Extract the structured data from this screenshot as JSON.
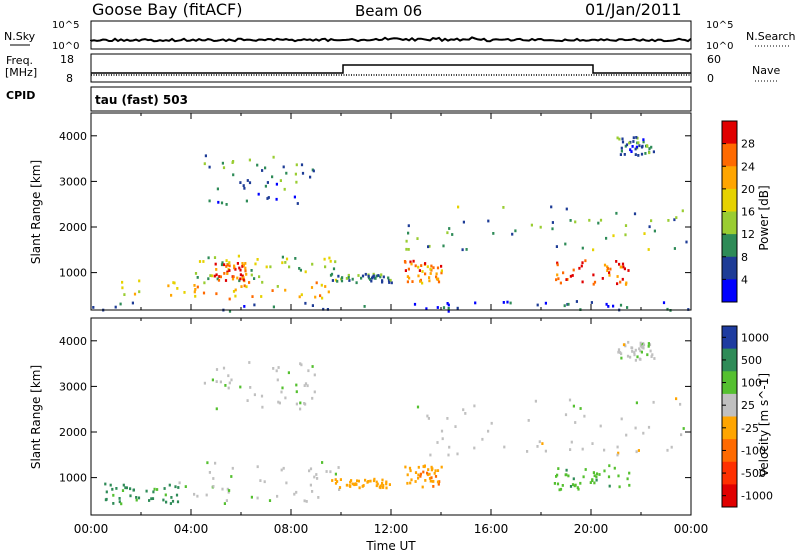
{
  "header": {
    "station": "Goose Bay (fitACF)",
    "beam": "Beam 06",
    "date": "01/Jan/2011"
  },
  "strip_labels": {
    "nsky": "N.Sky",
    "nsearch": "N.Search",
    "freq_line1": "Freq.",
    "freq_line2": "[MHz]",
    "cpid": "CPID",
    "nave": "Nave",
    "cpid_value": "tau (fast) 503",
    "nsky_ticks": [
      "10^5",
      "10^0"
    ],
    "nsearch_ticks": [
      "10^5",
      "10^0"
    ],
    "freq_ticks": [
      "18",
      "8"
    ],
    "nave_ticks": [
      "60",
      "0"
    ]
  },
  "chart_data": [
    {
      "type": "heatmap",
      "name": "power-panel",
      "ylabel": "Slant Range [km]",
      "colorbar_label": "Power [dB]",
      "colorbar_ticks": [
        "28",
        "24",
        "20",
        "16",
        "12",
        "8",
        "4"
      ],
      "colorbar_colors": [
        "#e00000",
        "#ff6a00",
        "#ffa500",
        "#e6d200",
        "#9acd32",
        "#2e8b57",
        "#1e3c96",
        "#0000ff"
      ],
      "ylim": [
        180,
        4500
      ],
      "yticks": [
        1000,
        2000,
        3000,
        4000
      ],
      "xlim": [
        0,
        24
      ],
      "clusters": [
        {
          "t0": 1.2,
          "t1": 10.0,
          "r0": 450,
          "r1": 850,
          "v": 20
        },
        {
          "t0": 4.0,
          "t1": 10.0,
          "r0": 850,
          "r1": 1400,
          "v": 14
        },
        {
          "t0": 4.8,
          "t1": 6.2,
          "r0": 850,
          "r1": 1250,
          "v": 26
        },
        {
          "t0": 4.5,
          "t1": 9.0,
          "r0": 2500,
          "r1": 3600,
          "v": 9
        },
        {
          "t0": 9.5,
          "t1": 12.0,
          "r0": 800,
          "r1": 1000,
          "v": 10
        },
        {
          "t0": 12.5,
          "t1": 14.0,
          "r0": 800,
          "r1": 1300,
          "v": 24
        },
        {
          "t0": 12.5,
          "t1": 24.0,
          "r0": 1500,
          "r1": 2500,
          "v": 12
        },
        {
          "t0": 18.5,
          "t1": 21.5,
          "r0": 750,
          "r1": 1300,
          "v": 27
        },
        {
          "t0": 21.0,
          "t1": 22.5,
          "r0": 3600,
          "r1": 4000,
          "v": 8
        },
        {
          "t0": 0.0,
          "t1": 24.0,
          "r0": 180,
          "r1": 400,
          "v": 6
        }
      ]
    },
    {
      "type": "heatmap",
      "name": "velocity-panel",
      "ylabel": "Slant Range [km]",
      "colorbar_label": "Velocity [m s^-1]",
      "colorbar_ticks": [
        "1000",
        "500",
        "100",
        "25",
        "-25",
        "-100",
        "-500",
        "-1000"
      ],
      "colorbar_colors": [
        "#1e3ca0",
        "#2e8b57",
        "#55c030",
        "#c0c0c0",
        "#ffa500",
        "#ff6a00",
        "#ff3000",
        "#e00000"
      ],
      "ylim": [
        180,
        4500
      ],
      "yticks": [
        1000,
        2000,
        3000,
        4000
      ],
      "xlim": [
        0,
        24
      ],
      "clusters": [
        {
          "t0": 0.5,
          "t1": 3.5,
          "r0": 450,
          "r1": 900,
          "v": 120
        },
        {
          "t0": 3.5,
          "t1": 10.0,
          "r0": 450,
          "r1": 1400,
          "v": 10
        },
        {
          "t0": 4.5,
          "t1": 9.0,
          "r0": 2500,
          "r1": 3600,
          "v": 5
        },
        {
          "t0": 9.5,
          "t1": 12.0,
          "r0": 800,
          "r1": 1000,
          "v": -60
        },
        {
          "t0": 12.5,
          "t1": 14.0,
          "r0": 800,
          "r1": 1300,
          "v": -80
        },
        {
          "t0": 12.5,
          "t1": 24.0,
          "r0": 1500,
          "r1": 2800,
          "v": 0
        },
        {
          "t0": 18.5,
          "t1": 21.5,
          "r0": 750,
          "r1": 1300,
          "v": 80
        },
        {
          "t0": 21.0,
          "t1": 22.5,
          "r0": 3600,
          "r1": 4000,
          "v": 0
        }
      ]
    }
  ],
  "xaxis": {
    "label": "Time UT",
    "ticks": [
      "00:00",
      "04:00",
      "08:00",
      "12:00",
      "16:00",
      "20:00",
      "00:00"
    ]
  }
}
